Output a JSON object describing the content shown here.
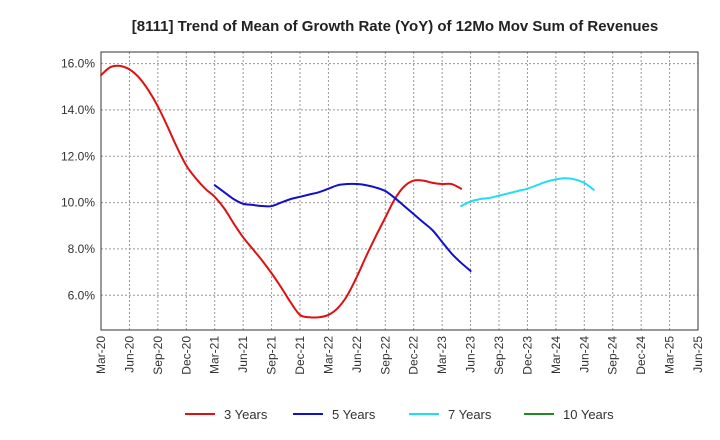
{
  "chart_data": {
    "type": "line",
    "title": "[8111]  Trend of Mean of Growth Rate (YoY) of 12Mo Mov Sum of Revenues",
    "xlabel": "",
    "ylabel": "",
    "ylim": [
      4.5,
      16.5
    ],
    "y_ticks": [
      6.0,
      8.0,
      10.0,
      12.0,
      14.0,
      16.0
    ],
    "y_tick_labels": [
      "6.0%",
      "8.0%",
      "10.0%",
      "12.0%",
      "14.0%",
      "16.0%"
    ],
    "x_tick_labels": [
      "Mar-20",
      "Jun-20",
      "Sep-20",
      "Dec-20",
      "Mar-21",
      "Jun-21",
      "Sep-21",
      "Dec-21",
      "Mar-22",
      "Jun-22",
      "Sep-22",
      "Dec-22",
      "Mar-23",
      "Jun-23",
      "Sep-23",
      "Dec-23",
      "Mar-24",
      "Jun-24",
      "Sep-24",
      "Dec-24",
      "Mar-25",
      "Jun-25"
    ],
    "series": [
      {
        "name": "3 Years",
        "color": "#dd1111",
        "start_index": 0,
        "values": [
          15.5,
          15.85,
          15.9,
          15.75,
          15.4,
          14.85,
          14.15,
          13.3,
          12.4,
          11.6,
          11.05,
          10.6,
          10.25,
          9.75,
          9.1,
          8.5,
          8.0,
          7.5,
          6.95,
          6.35,
          5.7,
          5.15,
          5.05,
          5.05,
          5.15,
          5.45,
          6.0,
          6.8,
          7.7,
          8.55,
          9.35,
          10.15,
          10.7,
          10.95,
          10.95,
          10.85,
          10.8,
          10.8,
          10.6
        ]
      },
      {
        "name": "5 Years",
        "color": "#1111cc",
        "start_index": 12,
        "values": [
          10.75,
          10.45,
          10.15,
          9.95,
          9.9,
          9.85,
          9.85,
          10.0,
          10.15,
          10.25,
          10.35,
          10.45,
          10.6,
          10.75,
          10.8,
          10.8,
          10.75,
          10.65,
          10.5,
          10.2,
          9.85,
          9.5,
          9.15,
          8.8,
          8.3,
          7.8,
          7.4,
          7.05
        ]
      },
      {
        "name": "7 Years",
        "color": "#22ddee",
        "start_index": 38,
        "values": [
          9.85,
          10.05,
          10.15,
          10.2,
          10.3,
          10.4,
          10.5,
          10.6,
          10.75,
          10.9,
          11.0,
          11.05,
          11.0,
          10.85,
          10.55
        ]
      },
      {
        "name": "10 Years",
        "color": "#228822",
        "start_index": 0,
        "values": []
      }
    ]
  }
}
